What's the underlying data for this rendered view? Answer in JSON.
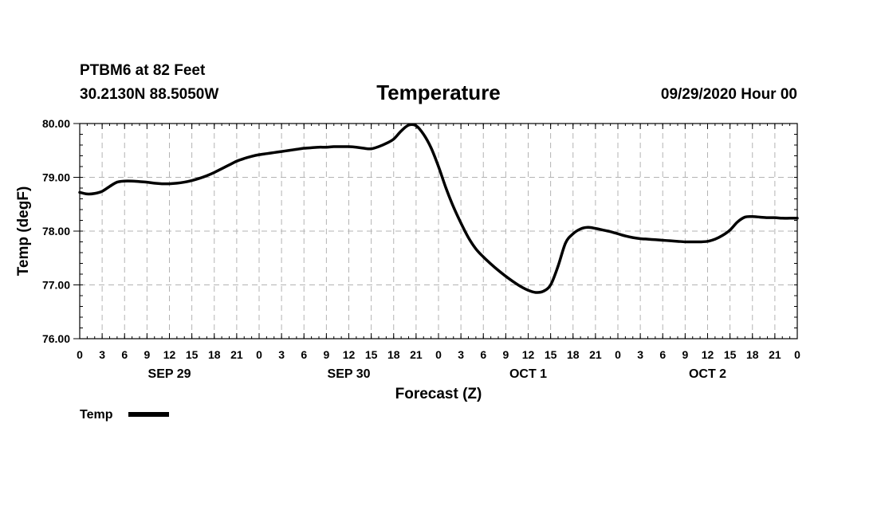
{
  "header": {
    "station": "PTBM6 at 82 Feet",
    "coords": "30.2130N 88.5050W",
    "title": "Temperature",
    "run": "09/29/2020 Hour 00"
  },
  "chart_data": {
    "type": "line",
    "title": "Temperature",
    "xlabel": "Forecast (Z)",
    "ylabel": "Temp (degF)",
    "ylim": [
      76.0,
      80.0
    ],
    "yticks": [
      "76.00",
      "77.00",
      "78.00",
      "79.00",
      "80.00"
    ],
    "xlim_hours": [
      0,
      96
    ],
    "xtick_labels": [
      "0",
      "3",
      "6",
      "9",
      "12",
      "15",
      "18",
      "21",
      "0",
      "3",
      "6",
      "9",
      "12",
      "15",
      "18",
      "21",
      "0",
      "3",
      "6",
      "9",
      "12",
      "15",
      "18",
      "21",
      "0",
      "3",
      "6",
      "9",
      "12",
      "15",
      "18",
      "21",
      "0"
    ],
    "day_labels": [
      {
        "label": "SEP 29",
        "hour": 12
      },
      {
        "label": "SEP 30",
        "hour": 36
      },
      {
        "label": "OCT 1",
        "hour": 60
      },
      {
        "label": "OCT 2",
        "hour": 84
      }
    ],
    "grid": true,
    "legend_position": "bottom-left",
    "series": [
      {
        "name": "Temp",
        "color": "#000000",
        "x": [
          0,
          1,
          2,
          3,
          4,
          5,
          6,
          7,
          8,
          9,
          10,
          11,
          12,
          13,
          14,
          15,
          16,
          17,
          18,
          19,
          20,
          21,
          22,
          23,
          24,
          25,
          26,
          27,
          28,
          29,
          30,
          31,
          32,
          33,
          34,
          35,
          36,
          37,
          38,
          39,
          40,
          41,
          42,
          43,
          44,
          45,
          46,
          47,
          48,
          49,
          50,
          51,
          52,
          53,
          54,
          55,
          56,
          57,
          58,
          59,
          60,
          61,
          62,
          63,
          64,
          65,
          66,
          67,
          68,
          69,
          70,
          71,
          72,
          73,
          74,
          75,
          76,
          77,
          78,
          79,
          80,
          81,
          82,
          83,
          84,
          85,
          86,
          87,
          88,
          89,
          90,
          91,
          92,
          93,
          94,
          95,
          96
        ],
        "y": [
          78.72,
          78.69,
          78.7,
          78.74,
          78.83,
          78.91,
          78.93,
          78.93,
          78.92,
          78.91,
          78.89,
          78.88,
          78.88,
          78.89,
          78.91,
          78.94,
          78.98,
          79.03,
          79.09,
          79.16,
          79.23,
          79.3,
          79.35,
          79.39,
          79.42,
          79.44,
          79.46,
          79.48,
          79.5,
          79.52,
          79.54,
          79.55,
          79.56,
          79.56,
          79.57,
          79.57,
          79.57,
          79.56,
          79.54,
          79.53,
          79.57,
          79.63,
          79.71,
          79.86,
          79.97,
          79.96,
          79.8,
          79.55,
          79.2,
          78.8,
          78.45,
          78.15,
          77.88,
          77.67,
          77.52,
          77.39,
          77.27,
          77.16,
          77.06,
          76.97,
          76.9,
          76.86,
          76.88,
          77.0,
          77.35,
          77.78,
          77.95,
          78.04,
          78.07,
          78.05,
          78.02,
          77.99,
          77.95,
          77.91,
          77.88,
          77.86,
          77.85,
          77.84,
          77.83,
          77.82,
          77.81,
          77.8,
          77.8,
          77.8,
          77.81,
          77.85,
          77.92,
          78.02,
          78.17,
          78.26,
          78.27,
          78.26,
          78.25,
          78.25,
          78.24,
          78.24,
          78.24
        ]
      }
    ]
  },
  "legend": {
    "label": "Temp"
  }
}
